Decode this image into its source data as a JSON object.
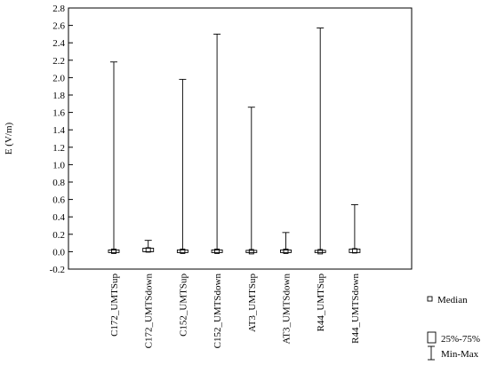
{
  "chart_data": {
    "type": "boxplot",
    "ylabel": "E (V/m)",
    "ylim": [
      -0.2,
      2.8
    ],
    "yticks": [
      -0.2,
      0.0,
      0.2,
      0.4,
      0.6,
      0.8,
      1.0,
      1.2,
      1.4,
      1.6,
      1.8,
      2.0,
      2.2,
      2.4,
      2.6,
      2.8
    ],
    "ytick_labels": [
      "-0.2",
      "0.0",
      "0.2",
      "0.4",
      "0.6",
      "0.8",
      "1.0",
      "1.2",
      "1.4",
      "1.6",
      "1.8",
      "2.0",
      "2.2",
      "2.4",
      "2.6",
      "2.8"
    ],
    "grid": false,
    "legend_position": "bottom-right",
    "legend": {
      "median": "Median",
      "box": "25%-75%",
      "whisker": "Min-Max"
    },
    "categories": [
      "C172_UMTSup",
      "C172_UMTSdown",
      "C152_UMTSup",
      "C152_UMTSdown",
      "AT3_UMTSup",
      "AT3_UMTSdown",
      "R44_UMTSup",
      "R44_UMTSdown"
    ],
    "series": [
      {
        "min": 0.0,
        "q1": 0.0,
        "median": 0.005,
        "q3": 0.01,
        "max": 2.18
      },
      {
        "min": 0.0,
        "q1": 0.01,
        "median": 0.02,
        "q3": 0.03,
        "max": 0.13
      },
      {
        "min": 0.0,
        "q1": 0.0,
        "median": 0.005,
        "q3": 0.01,
        "max": 1.98
      },
      {
        "min": 0.0,
        "q1": 0.0,
        "median": 0.005,
        "q3": 0.01,
        "max": 2.5
      },
      {
        "min": 0.0,
        "q1": 0.0,
        "median": 0.0,
        "q3": 0.005,
        "max": 1.66
      },
      {
        "min": 0.0,
        "q1": 0.0,
        "median": 0.005,
        "q3": 0.01,
        "max": 0.22
      },
      {
        "min": 0.0,
        "q1": 0.0,
        "median": 0.0,
        "q3": 0.005,
        "max": 2.57
      },
      {
        "min": 0.0,
        "q1": 0.0,
        "median": 0.01,
        "q3": 0.02,
        "max": 0.54
      }
    ]
  }
}
